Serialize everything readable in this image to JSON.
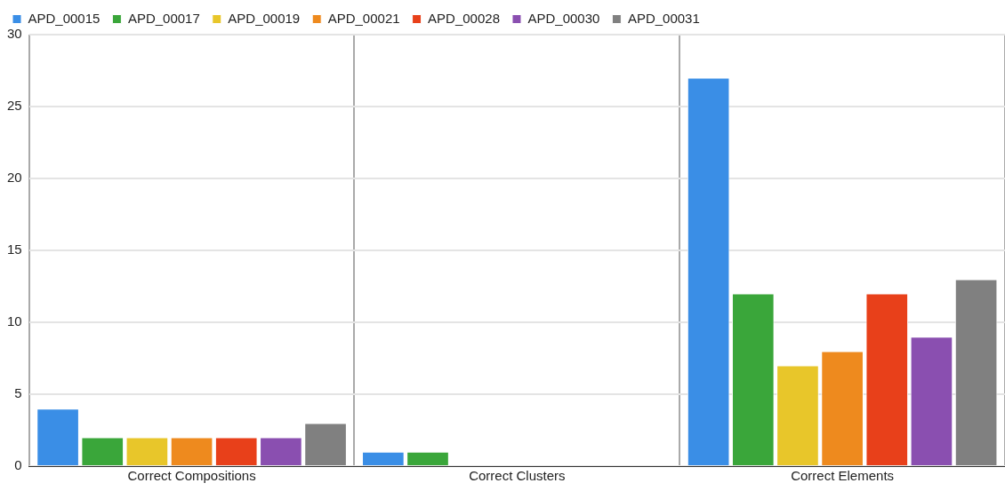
{
  "chart_data": {
    "type": "bar",
    "categories": [
      "Correct Compositions",
      "Correct Clusters",
      "Correct Elements"
    ],
    "series": [
      {
        "name": "APD_00015",
        "color": "#3a8ee6",
        "values": [
          4,
          1,
          27
        ]
      },
      {
        "name": "APD_00017",
        "color": "#3aa63a",
        "values": [
          2,
          1,
          12
        ]
      },
      {
        "name": "APD_00019",
        "color": "#e8c62a",
        "values": [
          2,
          0,
          7
        ]
      },
      {
        "name": "APD_00021",
        "color": "#ee8a1e",
        "values": [
          2,
          0,
          8
        ]
      },
      {
        "name": "APD_00028",
        "color": "#e8401a",
        "values": [
          2,
          0,
          12
        ]
      },
      {
        "name": "APD_00030",
        "color": "#8a4fb0",
        "values": [
          2,
          0,
          9
        ]
      },
      {
        "name": "APD_00031",
        "color": "#808080",
        "values": [
          3,
          0,
          13
        ]
      }
    ],
    "ylim": [
      0,
      30
    ],
    "yticks": [
      0,
      5,
      10,
      15,
      20,
      25,
      30
    ],
    "grid": true,
    "legend": "top"
  }
}
